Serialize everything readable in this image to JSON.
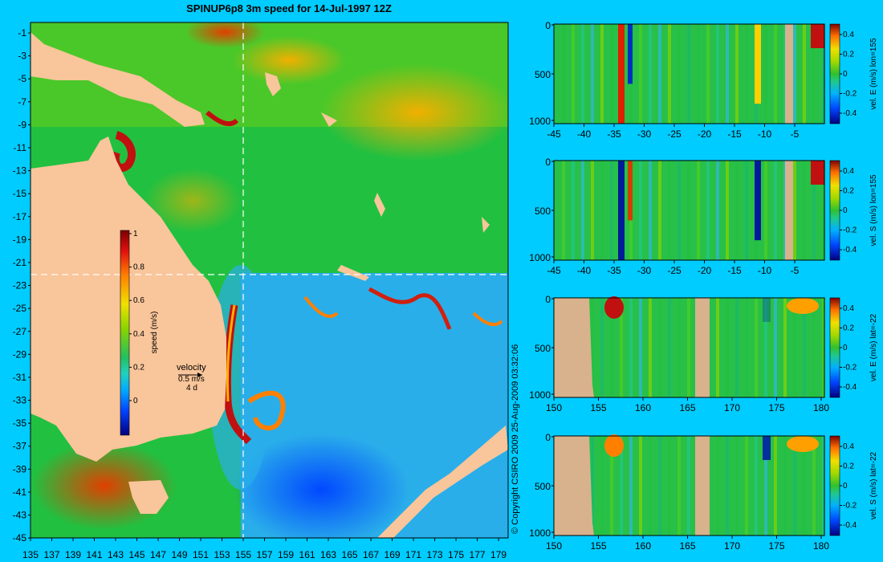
{
  "title": "SPINUP6p8 3m speed for 14-Jul-1997 12Z",
  "copyright": "© Copyright CSIRO 2009   25-Aug-2009 03:32:06",
  "colors": {
    "background": "#00ccff",
    "land": "#f9c59a",
    "section_land": "#d7b28c",
    "guide_line": "#ffffff"
  },
  "map": {
    "lon_ticks": [
      "135",
      "137",
      "139",
      "141",
      "143",
      "145",
      "147",
      "149",
      "151",
      "153",
      "155",
      "157",
      "159",
      "161",
      "163",
      "165",
      "167",
      "169",
      "171",
      "173",
      "175",
      "177",
      "179"
    ],
    "lat_ticks": [
      "-1",
      "-3",
      "-5",
      "-7",
      "-9",
      "-11",
      "-13",
      "-15",
      "-17",
      "-19",
      "-21",
      "-23",
      "-25",
      "-27",
      "-29",
      "-31",
      "-33",
      "-35",
      "-37",
      "-39",
      "-41",
      "-43",
      "-45"
    ],
    "section_lon": 155,
    "section_lat": -22,
    "colorbar": {
      "label": "speed (m/s)",
      "ticks": [
        "1",
        "0.8",
        "0.6",
        "0.4",
        "0.2",
        "0"
      ]
    },
    "velocity_key": {
      "title": "velocity",
      "speed": "0.5 m/s",
      "duration": "4 d"
    }
  },
  "panels": [
    {
      "label": "vel. E (m/s) lon=155",
      "depth_ticks": [
        "0",
        "500",
        "1000"
      ],
      "x_ticks": [
        "-45",
        "-40",
        "-35",
        "-30",
        "-25",
        "-20",
        "-15",
        "-10",
        "-5"
      ],
      "cbar_ticks": [
        "0.4",
        "0.2",
        "0",
        "-0.2",
        "-0.4"
      ]
    },
    {
      "label": "vel. S (m/s) lon=155",
      "depth_ticks": [
        "0",
        "500",
        "1000"
      ],
      "x_ticks": [
        "-45",
        "-40",
        "-35",
        "-30",
        "-25",
        "-20",
        "-15",
        "-10",
        "-5"
      ],
      "cbar_ticks": [
        "0.4",
        "0.2",
        "0",
        "-0.2",
        "-0.4"
      ]
    },
    {
      "label": "vel. E (m/s) lat=-22",
      "depth_ticks": [
        "0",
        "500",
        "1000"
      ],
      "x_ticks": [
        "150",
        "155",
        "160",
        "165",
        "170",
        "175",
        "180"
      ],
      "cbar_ticks": [
        "0.4",
        "0.2",
        "0",
        "-0.2",
        "-0.4"
      ]
    },
    {
      "label": "vel. S (m/s) lat=-22",
      "depth_ticks": [
        "0",
        "500",
        "1000"
      ],
      "x_ticks": [
        "150",
        "155",
        "160",
        "165",
        "170",
        "175",
        "180"
      ],
      "cbar_ticks": [
        "0.4",
        "0.2",
        "0",
        "-0.2",
        "-0.4"
      ]
    }
  ]
}
